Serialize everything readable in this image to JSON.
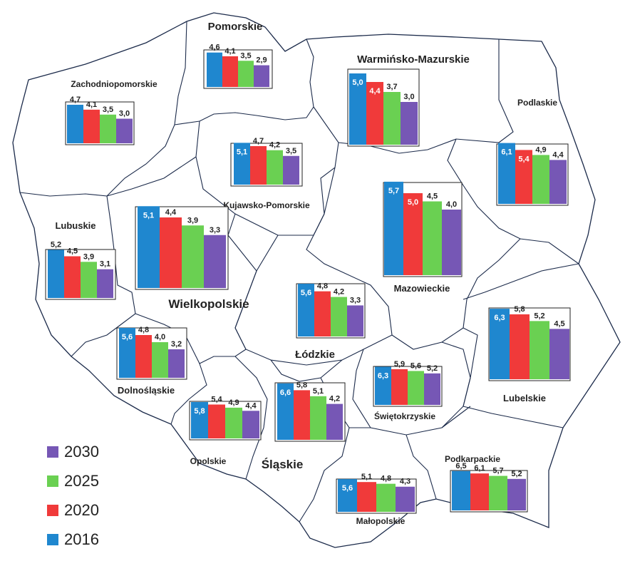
{
  "colors": {
    "s2016": "#1f87cf",
    "s2020": "#f03a3a",
    "s2025": "#6ad052",
    "s2030": "#7657b5",
    "border": "#1b2a4a"
  },
  "legend": [
    "2030",
    "2025",
    "2020",
    "2016"
  ],
  "chart_data": {
    "type": "bar",
    "categories": [
      "2016",
      "2020",
      "2025",
      "2030"
    ],
    "series": [
      {
        "name": "Pomorskie",
        "values": [
          4.6,
          4.1,
          3.5,
          2.9
        ],
        "labels": [
          "4,6",
          "4,1",
          "3,5",
          "2,9"
        ]
      },
      {
        "name": "Warmińsko-Mazurskie",
        "values": [
          5.0,
          4.4,
          3.7,
          3.0
        ],
        "labels": [
          "5,0",
          "4,4",
          "3,7",
          "3,0"
        ]
      },
      {
        "name": "Zachodniopomorskie",
        "values": [
          4.7,
          4.1,
          3.5,
          3.0
        ],
        "labels": [
          "4,7",
          "4,1",
          "3,5",
          "3,0"
        ]
      },
      {
        "name": "Podlaskie",
        "values": [
          6.1,
          5.4,
          4.9,
          4.4
        ],
        "labels": [
          "6,1",
          "5,4",
          "4,9",
          "4,4"
        ]
      },
      {
        "name": "Kujawsko-Pomorskie",
        "values": [
          5.1,
          4.7,
          4.2,
          3.5
        ],
        "labels": [
          "5,1",
          "4,7",
          "4,2",
          "3,5"
        ]
      },
      {
        "name": "Lubuskie",
        "values": [
          5.2,
          4.5,
          3.9,
          3.1
        ],
        "labels": [
          "5,2",
          "4,5",
          "3,9",
          "3,1"
        ]
      },
      {
        "name": "Wielkopolskie",
        "values": [
          5.1,
          4.4,
          3.9,
          3.3
        ],
        "labels": [
          "5,1",
          "4,4",
          "3,9",
          "3,3"
        ]
      },
      {
        "name": "Mazowieckie",
        "values": [
          5.7,
          5.0,
          4.5,
          4.0
        ],
        "labels": [
          "5,7",
          "5,0",
          "4,5",
          "4,0"
        ]
      },
      {
        "name": "Łódzkie",
        "values": [
          5.6,
          4.8,
          4.2,
          3.3
        ],
        "labels": [
          "5,6",
          "4,8",
          "4,2",
          "3,3"
        ]
      },
      {
        "name": "Dolnośląskie",
        "values": [
          5.6,
          4.8,
          4.0,
          3.2
        ],
        "labels": [
          "5,6",
          "4,8",
          "4,0",
          "3,2"
        ]
      },
      {
        "name": "Lubelskie",
        "values": [
          6.3,
          5.8,
          5.2,
          4.5
        ],
        "labels": [
          "6,3",
          "5,8",
          "5,2",
          "4,5"
        ]
      },
      {
        "name": "Świętokrzyskie",
        "values": [
          6.3,
          5.9,
          5.6,
          5.2
        ],
        "labels": [
          "6,3",
          "5,9",
          "5,6",
          "5,2"
        ]
      },
      {
        "name": "Opolskie",
        "values": [
          5.8,
          5.4,
          4.9,
          4.4
        ],
        "labels": [
          "5,8",
          "5,4",
          "4,9",
          "4,4"
        ]
      },
      {
        "name": "Śląskie",
        "values": [
          6.6,
          5.8,
          5.1,
          4.2
        ],
        "labels": [
          "6,6",
          "5,8",
          "5,1",
          "4,2"
        ]
      },
      {
        "name": "Podkarpackie",
        "values": [
          6.5,
          6.1,
          5.7,
          5.2
        ],
        "labels": [
          "6,5",
          "6,1",
          "5,7",
          "5,2"
        ]
      },
      {
        "name": "Małopolskie",
        "values": [
          5.6,
          5.1,
          4.8,
          4.3
        ],
        "labels": [
          "5,6",
          "5,1",
          "4,8",
          "4,3"
        ]
      }
    ]
  }
}
